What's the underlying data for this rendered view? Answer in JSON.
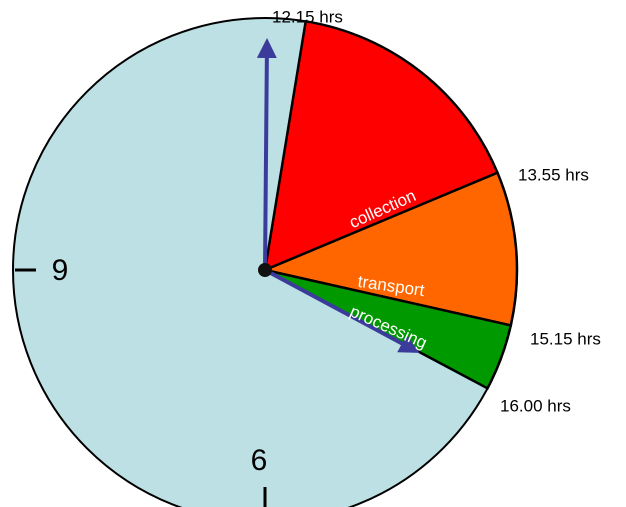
{
  "time_labels": [
    "12.15 hrs",
    "13.55 hrs",
    "15.15 hrs",
    "16.00 hrs"
  ],
  "segments": [
    "collection",
    "transport",
    "processing"
  ],
  "clock_numbers": [
    "9",
    "6"
  ]
}
